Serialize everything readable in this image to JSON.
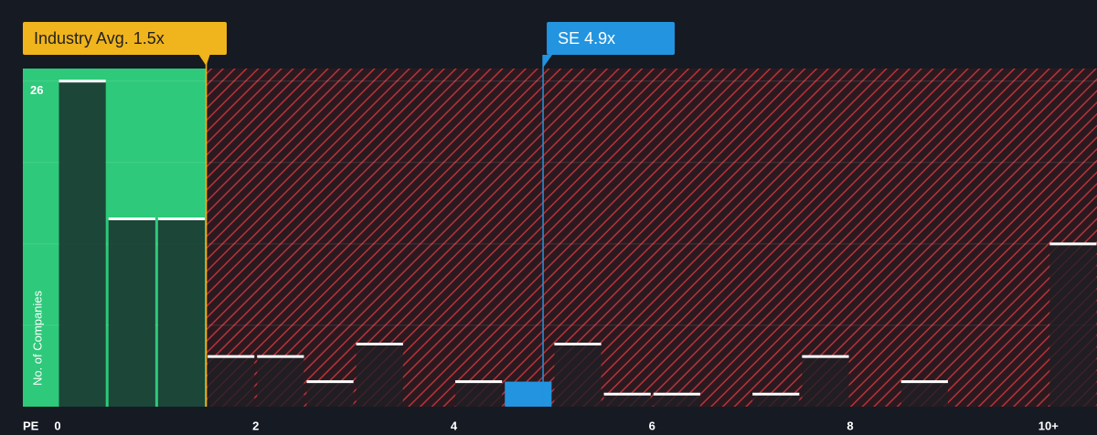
{
  "chart_data": {
    "type": "histogram",
    "x_label": "PE",
    "y_label": "No. of Companies",
    "bins": [
      0,
      0.5,
      1,
      1.5,
      2,
      2.5,
      3,
      3.5,
      4,
      4.5,
      5,
      5.5,
      6,
      6.5,
      7,
      7.5,
      8,
      8.5,
      9,
      9.5,
      10,
      10.5
    ],
    "counts": [
      26,
      15,
      15,
      4,
      4,
      2,
      5,
      0,
      2,
      2,
      5,
      1,
      1,
      0,
      1,
      4,
      0,
      2,
      0,
      0,
      13
    ],
    "highlight_bin": 9,
    "highlight_color": "#2394df",
    "xlim": [
      0,
      10.5
    ],
    "xticks": [
      0,
      2,
      4,
      6,
      8,
      {
        "value": 10,
        "label": "10+"
      }
    ],
    "ylim": [
      0,
      27
    ],
    "yticks": [
      26
    ],
    "ygrid": [
      6.5,
      13,
      19.5,
      26
    ],
    "markers": [
      {
        "label": "Industry Avg. 1.5x",
        "value": 1.5,
        "color": "#f0b41c"
      },
      {
        "label": "SE 4.9x",
        "value": 4.9,
        "color": "#2394df"
      }
    ]
  }
}
